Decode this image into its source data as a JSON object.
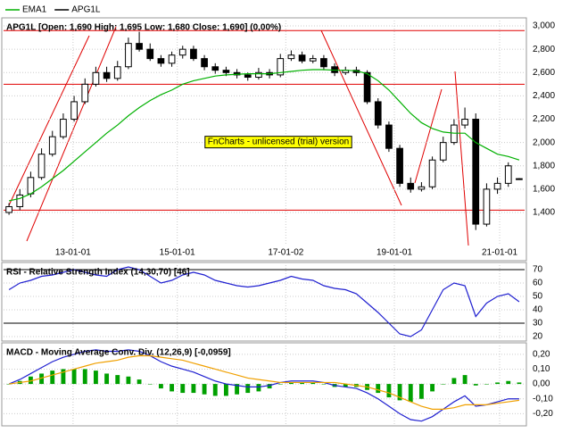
{
  "chart_data": [
    {
      "type": "candlestick",
      "name": "APG1L",
      "title": "APG1L [Open: 1,690  High: 1,695  Low: 1,680  Close: 1,690] (0,00%)",
      "annotation": "FnCharts - unlicensed (trial) version",
      "xlim": [
        0,
        48
      ],
      "xticks": [
        {
          "value": 6.4,
          "label": "13-01-01"
        },
        {
          "value": 16,
          "label": "15-01-01"
        },
        {
          "value": 26,
          "label": "17-01-02"
        },
        {
          "value": 36,
          "label": "19-01-01"
        },
        {
          "value": 45.7,
          "label": "21-01-01"
        }
      ],
      "ylim": [
        1155,
        3054
      ],
      "yticks": [
        {
          "value": 1400,
          "label": "1,400"
        },
        {
          "value": 1600,
          "label": "1,600"
        },
        {
          "value": 1800,
          "label": "1,800"
        },
        {
          "value": 2000,
          "label": "2,000"
        },
        {
          "value": 2200,
          "label": "2,200"
        },
        {
          "value": 2400,
          "label": "2,400"
        },
        {
          "value": 2600,
          "label": "2,600"
        },
        {
          "value": 2800,
          "label": "2,800"
        },
        {
          "value": 3000,
          "label": "3,000"
        }
      ],
      "grid": true,
      "color": "#000000",
      "open": [
        1400,
        1450,
        1560,
        1700,
        1900,
        2050,
        2200,
        2350,
        2500,
        2600,
        2550,
        2650,
        2850,
        2800,
        2720,
        2680,
        2750,
        2800,
        2720,
        2650,
        2620,
        2600,
        2580,
        2560,
        2600,
        2580,
        2720,
        2750,
        2700,
        2720,
        2650,
        2600,
        2620,
        2600,
        2350,
        2150,
        1950,
        1650,
        1600,
        1620,
        1850,
        2000,
        2150,
        2200,
        1300,
        1600,
        1650,
        1690
      ],
      "high": [
        1480,
        1600,
        1750,
        1950,
        2100,
        2250,
        2400,
        2550,
        2650,
        2650,
        2700,
        2900,
        2950,
        2850,
        2750,
        2780,
        2830,
        2830,
        2750,
        2680,
        2650,
        2630,
        2600,
        2640,
        2630,
        2760,
        2790,
        2780,
        2750,
        2750,
        2680,
        2650,
        2650,
        2620,
        2380,
        2180,
        1980,
        1700,
        1660,
        1880,
        2050,
        2200,
        2300,
        2250,
        1650,
        1700,
        1830,
        1695
      ],
      "low": [
        1380,
        1420,
        1530,
        1680,
        1880,
        2030,
        2180,
        2330,
        2480,
        2520,
        2530,
        2630,
        2780,
        2700,
        2650,
        2650,
        2720,
        2700,
        2620,
        2590,
        2570,
        2550,
        2530,
        2540,
        2550,
        2560,
        2700,
        2680,
        2680,
        2620,
        2570,
        2580,
        2570,
        2330,
        2120,
        1920,
        1620,
        1570,
        1580,
        1600,
        1830,
        1980,
        2120,
        1250,
        1280,
        1560,
        1620,
        1680
      ],
      "close": [
        1450,
        1550,
        1700,
        1900,
        2050,
        2200,
        2350,
        2500,
        2600,
        2550,
        2650,
        2850,
        2800,
        2720,
        2680,
        2750,
        2800,
        2720,
        2650,
        2620,
        2600,
        2580,
        2560,
        2600,
        2580,
        2720,
        2750,
        2700,
        2720,
        2650,
        2600,
        2620,
        2600,
        2350,
        2150,
        1950,
        1650,
        1600,
        1620,
        1850,
        2000,
        2150,
        2200,
        1300,
        1600,
        1650,
        1800,
        1690
      ],
      "series": [
        {
          "name": "EMA1",
          "color": "#00b000",
          "values": [
            1500,
            1520,
            1560,
            1620,
            1690,
            1760,
            1840,
            1920,
            2000,
            2080,
            2150,
            2230,
            2300,
            2360,
            2410,
            2450,
            2500,
            2530,
            2550,
            2570,
            2580,
            2585,
            2590,
            2590,
            2590,
            2600,
            2610,
            2620,
            2625,
            2625,
            2620,
            2620,
            2615,
            2590,
            2530,
            2450,
            2350,
            2250,
            2170,
            2120,
            2090,
            2080,
            2080,
            2000,
            1950,
            1900,
            1880,
            1850
          ]
        }
      ],
      "hlines": [
        2960,
        2500,
        1420
      ],
      "hline_color": "#e00000"
    },
    {
      "type": "line",
      "title": "RSI - Relative Strength Index (14,30,70) [46]",
      "ylim": [
        18,
        74
      ],
      "yticks": [
        20,
        30,
        40,
        50,
        60,
        70
      ],
      "grid": true,
      "series": [
        {
          "color": "#2020d0",
          "values": [
            55,
            60,
            62,
            65,
            66,
            68,
            70,
            68,
            66,
            65,
            70,
            72,
            70,
            65,
            60,
            62,
            66,
            68,
            66,
            62,
            60,
            58,
            57,
            58,
            60,
            62,
            65,
            63,
            62,
            58,
            56,
            55,
            52,
            45,
            38,
            30,
            22,
            20,
            25,
            40,
            55,
            60,
            58,
            35,
            45,
            50,
            52,
            46
          ]
        }
      ],
      "hlines": [
        70,
        30
      ],
      "hline_color": "#000000"
    },
    {
      "type": "macd",
      "title": "MACD - Moving Average Conv. Div. (12,26,9) [-0,0959]",
      "ylim": [
        -0.27,
        0.265
      ],
      "yticks": [
        {
          "value": -0.2,
          "label": "-0,20"
        },
        {
          "value": -0.1,
          "label": "-0,10"
        },
        {
          "value": 0,
          "label": "0,00"
        },
        {
          "value": 0.1,
          "label": "0,10"
        },
        {
          "value": 0.2,
          "label": "0,20"
        }
      ],
      "grid": true,
      "series": [
        {
          "color": "#2020d0",
          "values": [
            0,
            0.03,
            0.07,
            0.11,
            0.15,
            0.18,
            0.2,
            0.22,
            0.23,
            0.22,
            0.22,
            0.23,
            0.22,
            0.19,
            0.15,
            0.12,
            0.1,
            0.08,
            0.05,
            0.02,
            0,
            -0.01,
            -0.02,
            -0.02,
            -0.01,
            0.01,
            0.02,
            0.02,
            0.02,
            0.01,
            -0.01,
            -0.02,
            -0.03,
            -0.06,
            -0.1,
            -0.15,
            -0.2,
            -0.24,
            -0.25,
            -0.22,
            -0.17,
            -0.12,
            -0.08,
            -0.15,
            -0.14,
            -0.12,
            -0.1,
            -0.1
          ]
        },
        {
          "color": "#f0a000",
          "values": [
            0,
            0.01,
            0.02,
            0.04,
            0.06,
            0.08,
            0.1,
            0.12,
            0.14,
            0.15,
            0.16,
            0.18,
            0.19,
            0.19,
            0.18,
            0.17,
            0.16,
            0.14,
            0.12,
            0.1,
            0.08,
            0.06,
            0.04,
            0.03,
            0.02,
            0.01,
            0.01,
            0.01,
            0.01,
            0.01,
            0.01,
            0,
            -0.01,
            -0.02,
            -0.04,
            -0.06,
            -0.09,
            -0.12,
            -0.15,
            -0.17,
            -0.17,
            -0.16,
            -0.14,
            -0.14,
            -0.14,
            -0.13,
            -0.12,
            -0.11
          ]
        }
      ],
      "histogram": {
        "color": "#00a000",
        "values": [
          0,
          0.02,
          0.05,
          0.07,
          0.09,
          0.1,
          0.1,
          0.1,
          0.09,
          0.07,
          0.06,
          0.05,
          0.03,
          0,
          -0.03,
          -0.05,
          -0.06,
          -0.06,
          -0.07,
          -0.08,
          -0.08,
          -0.07,
          -0.06,
          -0.05,
          -0.03,
          0,
          0.01,
          0.01,
          0.01,
          0,
          -0.02,
          -0.02,
          -0.02,
          -0.04,
          -0.06,
          -0.09,
          -0.11,
          -0.12,
          -0.1,
          -0.05,
          0,
          0.04,
          0.06,
          -0.01,
          0,
          0.01,
          0.02,
          0.01
        ]
      }
    }
  ]
}
